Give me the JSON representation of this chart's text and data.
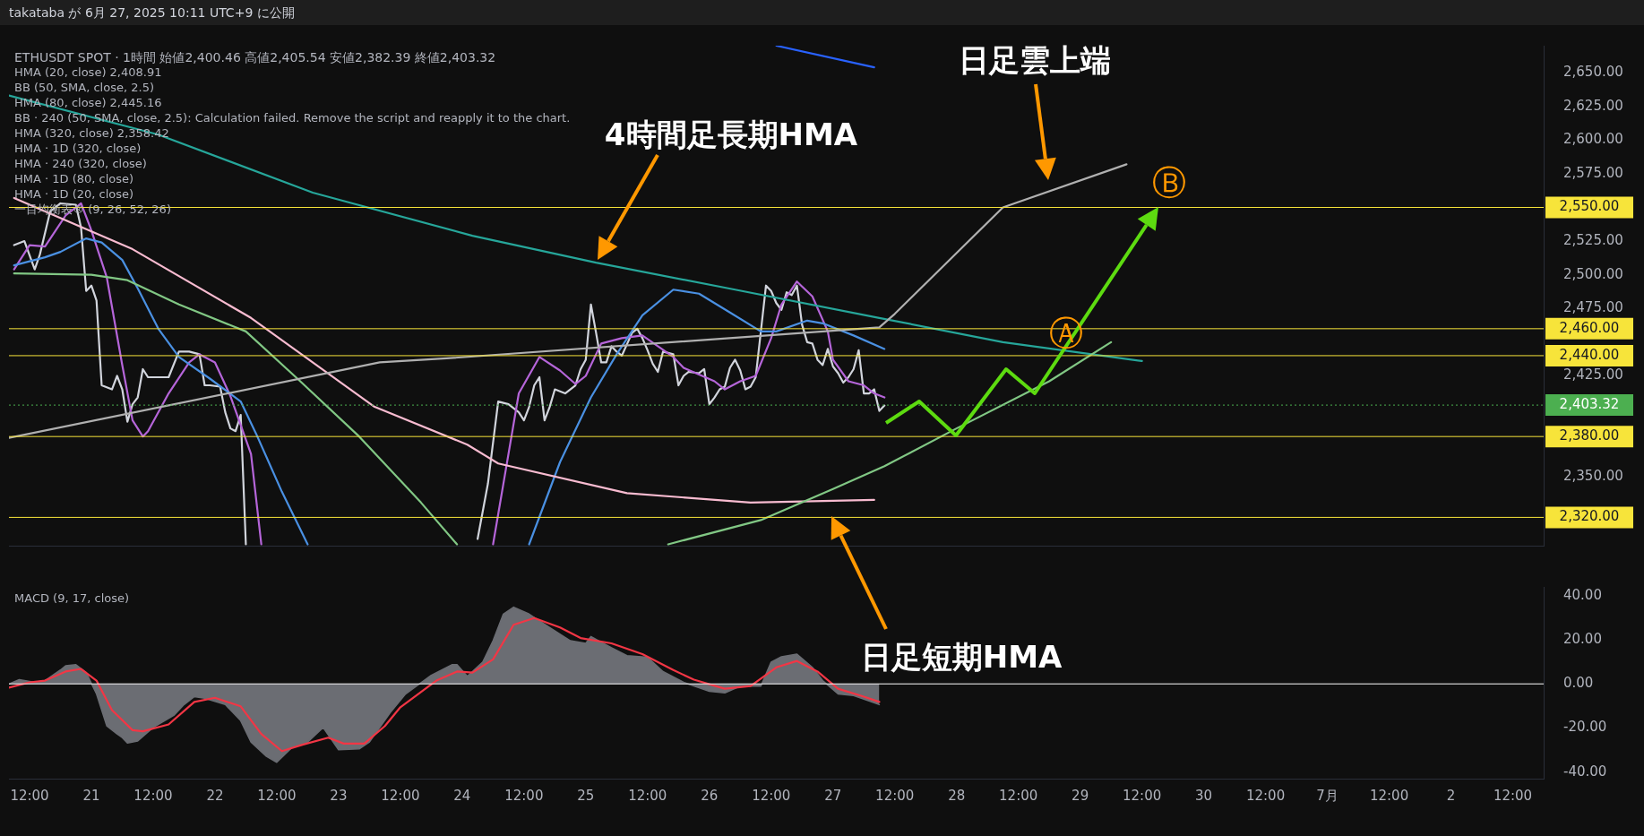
{
  "chart_data": [
    {
      "type": "line",
      "title": "takataba が 6月 27, 2025 10:11 UTC+9 に公開",
      "subtitle": "ETHUSDT SPOT · 1時間 始値2,400.46 高値2,405.54 安値2,382.39 終値2,403.32",
      "xlim": [
        "2025-06-20T08:00",
        "2025-07-02T18:00"
      ],
      "ylim": [
        2299,
        2670
      ],
      "tick_labels": "y",
      "yticks": [
        {
          "value": 2350,
          "label": "2,350.00"
        },
        {
          "value": 2425,
          "label": "2,425.00"
        },
        {
          "value": 2475,
          "label": "2,475.00"
        },
        {
          "value": 2500,
          "label": "2,500.00"
        },
        {
          "value": 2525,
          "label": "2,525.00"
        },
        {
          "value": 2575,
          "label": "2,575.00"
        },
        {
          "value": 2600,
          "label": "2,600.00"
        },
        {
          "value": 2625,
          "label": "2,625.00"
        },
        {
          "value": 2650,
          "label": "2,650.00"
        }
      ],
      "series": [
        {
          "color": "#d1d4dc",
          "x": [
            "2025-06-20T09:00",
            "2025-06-20T11:00",
            "2025-06-20T13:00",
            "2025-06-20T14:00",
            "2025-06-20T16:00",
            "2025-06-20T18:00",
            "2025-06-20T21:00",
            "2025-06-20T22:00",
            "2025-06-20T23:00",
            "2025-06-21T00:00",
            "2025-06-21T01:00",
            "2025-06-21T02:00",
            "2025-06-21T04:00",
            "2025-06-21T05:00",
            "2025-06-21T06:00",
            "2025-06-21T07:00",
            "2025-06-21T08:00",
            "2025-06-21T09:00",
            "2025-06-21T10:00",
            "2025-06-21T11:00",
            "2025-06-21T13:00",
            "2025-06-21T15:00",
            "2025-06-21T17:00",
            "2025-06-21T19:00",
            "2025-06-21T21:00",
            "2025-06-21T22:00",
            "2025-06-21T23:00",
            "2025-06-22T01:00",
            "2025-06-22T02:00",
            "2025-06-22T03:00",
            "2025-06-22T04:00",
            "2025-06-22T05:00",
            "2025-06-22T06:00",
            "2025-06-23T04:00",
            "2025-06-24T03:00",
            "2025-06-24T05:00",
            "2025-06-24T07:00",
            "2025-06-24T09:00",
            "2025-06-24T11:00",
            "2025-06-24T12:00",
            "2025-06-24T13:00",
            "2025-06-24T14:00",
            "2025-06-24T15:00",
            "2025-06-24T16:00",
            "2025-06-24T17:00",
            "2025-06-24T18:00",
            "2025-06-24T20:00",
            "2025-06-24T22:00",
            "2025-06-24T23:00",
            "2025-06-25T00:00",
            "2025-06-25T01:00",
            "2025-06-25T02:00",
            "2025-06-25T03:00",
            "2025-06-25T04:00",
            "2025-06-25T05:00",
            "2025-06-25T06:00",
            "2025-06-25T07:00",
            "2025-06-25T09:00",
            "2025-06-25T10:00",
            "2025-06-25T11:00",
            "2025-06-25T12:00",
            "2025-06-25T13:00",
            "2025-06-25T14:00",
            "2025-06-25T15:00",
            "2025-06-25T17:00",
            "2025-06-25T18:00",
            "2025-06-25T19:00",
            "2025-06-25T20:00",
            "2025-06-25T22:00",
            "2025-06-25T23:00",
            "2025-06-26T00:00",
            "2025-06-26T01:00",
            "2025-06-26T02:00",
            "2025-06-26T03:00",
            "2025-06-26T04:00",
            "2025-06-26T05:00",
            "2025-06-26T06:00",
            "2025-06-26T07:00",
            "2025-06-26T08:00",
            "2025-06-26T09:00",
            "2025-06-26T10:00",
            "2025-06-26T11:00",
            "2025-06-26T12:00",
            "2025-06-26T13:00",
            "2025-06-26T14:00",
            "2025-06-26T15:00",
            "2025-06-26T16:00",
            "2025-06-26T17:00",
            "2025-06-26T18:00",
            "2025-06-26T19:00",
            "2025-06-26T20:00",
            "2025-06-26T21:00",
            "2025-06-26T22:00",
            "2025-06-26T23:00",
            "2025-06-27T00:00",
            "2025-06-27T01:00",
            "2025-06-27T02:00",
            "2025-06-27T03:00",
            "2025-06-27T04:00",
            "2025-06-27T05:00",
            "2025-06-27T06:00",
            "2025-06-27T07:00",
            "2025-06-27T08:00",
            "2025-06-27T09:00",
            "2025-06-27T10:00"
          ],
          "values": [
            2522,
            2525,
            2504,
            2515,
            2547,
            2553,
            2552,
            2535,
            2488,
            2492,
            2481,
            2418,
            2415,
            2425,
            2415,
            2391,
            2404,
            2409,
            2430,
            2424,
            2424,
            2424,
            2443,
            2443,
            2441,
            2418,
            2418,
            2417,
            2398,
            2386,
            2384,
            2396,
            2300,
            null,
            2304,
            2345,
            2406,
            2404,
            2398,
            2392,
            2402,
            2418,
            2424,
            2392,
            2402,
            2415,
            2412,
            2418,
            2430,
            2437,
            2478,
            2457,
            2435,
            2435,
            2447,
            2443,
            2440,
            2457,
            2460,
            2453,
            2444,
            2434,
            2428,
            2443,
            2441,
            2418,
            2425,
            2428,
            2427,
            2430,
            2404,
            2409,
            2415,
            2417,
            2431,
            2437,
            2429,
            2415,
            2417,
            2424,
            2458,
            2492,
            2488,
            2479,
            2474,
            2487,
            2485,
            2492,
            2463,
            2450,
            2449,
            2437,
            2433,
            2445,
            2432,
            2427,
            2420,
            2424,
            2430,
            2444,
            2412,
            2412,
            2415,
            2399,
            2403
          ]
        },
        {
          "color": "#b565d9",
          "x": [
            "2025-06-20T09:00",
            "2025-06-20T12:00",
            "2025-06-20T15:00",
            "2025-06-20T19:00",
            "2025-06-20T22:00",
            "2025-06-21T00:00",
            "2025-06-21T03:00",
            "2025-06-21T06:00",
            "2025-06-21T08:00",
            "2025-06-21T10:00",
            "2025-06-21T11:00",
            "2025-06-21T15:00",
            "2025-06-21T19:00",
            "2025-06-21T21:00",
            "2025-06-22T00:00",
            "2025-06-22T03:00",
            "2025-06-22T07:00",
            "2025-06-22T09:00",
            "2025-06-23T08:00",
            "2025-06-24T06:00",
            "2025-06-24T11:00",
            "2025-06-24T15:00",
            "2025-06-24T19:00",
            "2025-06-24T22:00",
            "2025-06-25T00:00",
            "2025-06-25T03:00",
            "2025-06-25T07:00",
            "2025-06-25T11:00",
            "2025-06-25T14:00",
            "2025-06-25T17:00",
            "2025-06-25T19:00",
            "2025-06-25T22:00",
            "2025-06-26T01:00",
            "2025-06-26T03:00",
            "2025-06-26T06:00",
            "2025-06-26T09:00",
            "2025-06-26T12:00",
            "2025-06-26T14:00",
            "2025-06-26T17:00",
            "2025-06-26T20:00",
            "2025-06-26T23:00",
            "2025-06-27T00:00",
            "2025-06-27T03:00",
            "2025-06-27T06:00",
            "2025-06-27T08:00",
            "2025-06-27T10:00"
          ],
          "values": [
            2504,
            2522,
            2521,
            2544,
            2553,
            2533,
            2498,
            2433,
            2392,
            2380,
            2384,
            2412,
            2435,
            2441,
            2435,
            2410,
            2367,
            2300,
            null,
            2300,
            2412,
            2439,
            2429,
            2419,
            2425,
            2449,
            2453,
            2455,
            2447,
            2439,
            2431,
            2426,
            2421,
            2415,
            2421,
            2425,
            2453,
            2478,
            2495,
            2484,
            2458,
            2437,
            2421,
            2418,
            2412,
            2409
          ]
        },
        {
          "color": "#4a90e2",
          "x": [
            "2025-06-20T09:00",
            "2025-06-20T15:00",
            "2025-06-20T18:00",
            "2025-06-20T23:00",
            "2025-06-21T02:00",
            "2025-06-21T06:00",
            "2025-06-21T09:00",
            "2025-06-21T13:00",
            "2025-06-21T17:00",
            "2025-06-21T23:00",
            "2025-06-22T05:00",
            "2025-06-22T08:00",
            "2025-06-22T13:00",
            "2025-06-22T18:00",
            "2025-06-23T16:00",
            "2025-06-24T13:00",
            "2025-06-24T19:00",
            "2025-06-25T01:00",
            "2025-06-25T06:00",
            "2025-06-25T11:00",
            "2025-06-25T17:00",
            "2025-06-25T22:00",
            "2025-06-26T04:00",
            "2025-06-26T10:00",
            "2025-06-26T13:00",
            "2025-06-26T19:00",
            "2025-06-26T22:00",
            "2025-06-27T04:00",
            "2025-06-27T10:00"
          ],
          "values": [
            2507,
            2513,
            2517,
            2527,
            2524,
            2511,
            2490,
            2460,
            2439,
            2423,
            2406,
            2382,
            2339,
            2300,
            null,
            2300,
            2361,
            2409,
            2441,
            2470,
            2489,
            2486,
            2472,
            2458,
            2458,
            2466,
            2464,
            2455,
            2445
          ]
        },
        {
          "color": "#f8bbd0",
          "x": [
            "2025-06-20T09:00",
            "2025-06-21T08:00",
            "2025-06-22T07:00",
            "2025-06-23T07:00",
            "2025-06-24T01:00",
            "2025-06-24T07:00",
            "2025-06-25T08:00",
            "2025-06-26T08:00",
            "2025-06-27T08:00"
          ],
          "values": [
            2557,
            2519,
            2468,
            2402,
            2374,
            2360,
            2338,
            2331,
            2333
          ]
        },
        {
          "color": "#26a69a",
          "x": [
            "2025-06-20T08:00",
            "2025-06-21T13:00",
            "2025-06-22T19:00",
            "2025-06-24T02:00",
            "2025-06-25T02:00",
            "2025-06-26T05:00",
            "2025-06-27T09:00",
            "2025-06-28T09:00",
            "2025-06-29T12:00"
          ],
          "values": [
            2633,
            2604,
            2561,
            2529,
            2509,
            2489,
            2468,
            2450,
            2436
          ]
        },
        {
          "color": "#2962ff",
          "x": [
            "2025-06-26T13:00",
            "2025-06-27T08:00"
          ],
          "values": [
            2670,
            2654
          ]
        },
        {
          "color": "#81c784",
          "x": [
            "2025-06-20T09:00",
            "2025-06-21T00:00",
            "2025-06-21T07:00",
            "2025-06-21T17:00",
            "2025-06-22T06:00",
            "2025-06-22T16:00",
            "2025-06-23T04:00",
            "2025-06-23T16:00",
            "2025-06-23T23:00",
            "2025-06-24T19:00",
            "2025-06-25T16:00",
            "2025-06-26T10:00",
            "2025-06-27T00:00",
            "2025-06-27T10:00",
            "2025-06-28T00:00",
            "2025-06-28T18:00",
            "2025-06-29T06:00"
          ],
          "values": [
            2501,
            2500,
            2496,
            2478,
            2458,
            2423,
            2380,
            2331,
            2300,
            null,
            2300,
            2318,
            2341,
            2358,
            2386,
            2421,
            2450
          ]
        },
        {
          "color": "#b0b0b0",
          "x": [
            "2025-06-20T08:00",
            "2025-06-23T08:00",
            "2025-06-23T21:00",
            "2025-06-27T09:00",
            "2025-06-27T12:00",
            "2025-06-28T09:00",
            "2025-06-29T09:00"
          ],
          "values": [
            2379,
            2435,
            2438,
            2461,
            2471,
            2550,
            2582
          ]
        }
      ],
      "ref_lines": [
        {
          "axis": "y",
          "value": 2550,
          "label": "2,550.00",
          "color": "#f7e43a"
        },
        {
          "axis": "y",
          "value": 2460,
          "label": "2,460.00",
          "color": "#f7e43a"
        },
        {
          "axis": "y",
          "value": 2440,
          "label": "2,440.00",
          "color": "#f7e43a"
        },
        {
          "axis": "y",
          "value": 2403.32,
          "label": "2,403.32",
          "color": "#4caf50",
          "line_style": "dotted"
        },
        {
          "axis": "y",
          "value": 2380,
          "label": "2,380.00",
          "color": "#f7e43a"
        },
        {
          "axis": "y",
          "value": 2320,
          "label": "2,320.00",
          "color": "#f7e43a"
        }
      ],
      "annotations": [
        "4時間足長期HMA",
        "日足雲上端",
        "日足短期HMA",
        "Ⓐ",
        "Ⓑ",
        "HMA (20, close) 2,408.91",
        "BB (50, SMA, close, 2.5)",
        "HMA (80, close) 2,445.16",
        "BB · 240 (50, SMA, close, 2.5): Calculation failed. Remove the script and reapply it to the chart.",
        "HMA (320, close) 2,358.42",
        "HMA · 1D (320, close)",
        "HMA · 240 (320, close)",
        "HMA · 1D (80, close)",
        "HMA · 1D (20, close)",
        "一目均衡表® (9, 26, 52, 26)"
      ]
    },
    {
      "type": "line",
      "title": "MACD (9, 17, close)",
      "xlim": [
        "2025-06-20T08:00",
        "2025-07-02T18:00"
      ],
      "ylim": [
        -43,
        44
      ],
      "xticks": [
        {
          "value": "2025-06-20T12:00",
          "label": "12:00"
        },
        {
          "value": "2025-06-21T00:00",
          "label": "21"
        },
        {
          "value": "2025-06-21T12:00",
          "label": "12:00"
        },
        {
          "value": "2025-06-22T00:00",
          "label": "22"
        },
        {
          "value": "2025-06-22T12:00",
          "label": "12:00"
        },
        {
          "value": "2025-06-23T00:00",
          "label": "23"
        },
        {
          "value": "2025-06-23T12:00",
          "label": "12:00"
        },
        {
          "value": "2025-06-24T00:00",
          "label": "24"
        },
        {
          "value": "2025-06-24T12:00",
          "label": "12:00"
        },
        {
          "value": "2025-06-25T00:00",
          "label": "25"
        },
        {
          "value": "2025-06-25T12:00",
          "label": "12:00"
        },
        {
          "value": "2025-06-26T00:00",
          "label": "26"
        },
        {
          "value": "2025-06-26T12:00",
          "label": "12:00"
        },
        {
          "value": "2025-06-27T00:00",
          "label": "27"
        },
        {
          "value": "2025-06-27T12:00",
          "label": "12:00"
        },
        {
          "value": "2025-06-28T00:00",
          "label": "28"
        },
        {
          "value": "2025-06-28T12:00",
          "label": "12:00"
        },
        {
          "value": "2025-06-29T00:00",
          "label": "29"
        },
        {
          "value": "2025-06-29T12:00",
          "label": "12:00"
        },
        {
          "value": "2025-06-30T00:00",
          "label": "30"
        },
        {
          "value": "2025-06-30T12:00",
          "label": "12:00"
        },
        {
          "value": "2025-07-01T00:00",
          "label": "7月"
        },
        {
          "value": "2025-07-01T12:00",
          "label": "12:00"
        },
        {
          "value": "2025-07-02T00:00",
          "label": "2"
        },
        {
          "value": "2025-07-02T12:00",
          "label": "12:00"
        }
      ],
      "yticks": [
        {
          "value": -40,
          "label": "-40.00"
        },
        {
          "value": -20,
          "label": "-20.00"
        },
        {
          "value": 0,
          "label": "0.00"
        },
        {
          "value": 20,
          "label": "20.00"
        },
        {
          "value": 40,
          "label": "40.00"
        }
      ],
      "series": [
        {
          "type": "area",
          "color": "#6b6d73",
          "x": [
            "2025-06-20T08:00",
            "2025-06-20T10:00",
            "2025-06-20T13:00",
            "2025-06-20T15:00",
            "2025-06-20T18:00",
            "2025-06-20T19:00",
            "2025-06-20T21:00",
            "2025-06-20T23:00",
            "2025-06-21T01:00",
            "2025-06-21T03:00",
            "2025-06-21T05:00",
            "2025-06-21T06:00",
            "2025-06-21T07:00",
            "2025-06-21T09:00",
            "2025-06-21T12:00",
            "2025-06-21T16:00",
            "2025-06-21T18:00",
            "2025-06-21T20:00",
            "2025-06-21T22:00",
            "2025-06-22T02:00",
            "2025-06-22T05:00",
            "2025-06-22T07:00",
            "2025-06-22T10:00",
            "2025-06-22T12:00",
            "2025-06-22T15:00",
            "2025-06-22T18:00",
            "2025-06-22T21:00",
            "2025-06-23T00:00",
            "2025-06-23T04:00",
            "2025-06-23T06:00",
            "2025-06-23T10:00",
            "2025-06-23T13:00",
            "2025-06-23T18:00",
            "2025-06-23T22:00",
            "2025-06-23T23:00",
            "2025-06-24T01:00",
            "2025-06-24T04:00",
            "2025-06-24T06:00",
            "2025-06-24T08:00",
            "2025-06-24T10:00",
            "2025-06-24T13:00",
            "2025-06-24T17:00",
            "2025-06-24T21:00",
            "2025-06-25T00:00",
            "2025-06-25T01:00",
            "2025-06-25T05:00",
            "2025-06-25T08:00",
            "2025-06-25T12:00",
            "2025-06-25T15:00",
            "2025-06-25T19:00",
            "2025-06-26T00:00",
            "2025-06-26T03:00",
            "2025-06-26T06:00",
            "2025-06-26T10:00",
            "2025-06-26T12:00",
            "2025-06-26T14:00",
            "2025-06-26T17:00",
            "2025-06-26T20:00",
            "2025-06-26T22:00",
            "2025-06-27T01:00",
            "2025-06-27T04:00",
            "2025-06-27T07:00",
            "2025-06-27T09:00"
          ],
          "values": [
            0,
            1.9,
            0.7,
            1.5,
            6.3,
            8.2,
            8.7,
            5.1,
            -4.6,
            -19.1,
            -22.7,
            -24.4,
            -26.8,
            -25.9,
            -19.8,
            -14.3,
            -9.4,
            -5.8,
            -6.5,
            -9.4,
            -16.7,
            -26.4,
            -32.9,
            -35.6,
            -28.8,
            -26.4,
            -19.8,
            -29.9,
            -29.5,
            -26.4,
            -13.1,
            -4.6,
            3.9,
            8.7,
            8.7,
            3.4,
            9.9,
            19.6,
            31.7,
            34.8,
            31.7,
            25.6,
            19.6,
            18.4,
            21.5,
            16.4,
            12.8,
            12.1,
            5.6,
            0.7,
            -3.4,
            -4.1,
            -1,
            -1,
            9.9,
            12.3,
            13.5,
            7.5,
            1.5,
            -4.6,
            -5.3,
            -7.7,
            -9.4
          ]
        },
        {
          "color": "#f23645",
          "x": [
            "2025-06-20T08:00",
            "2025-06-20T12:00",
            "2025-06-20T15:00",
            "2025-06-20T19:00",
            "2025-06-20T22:00",
            "2025-06-21T01:00",
            "2025-06-21T04:00",
            "2025-06-21T08:00",
            "2025-06-21T10:00",
            "2025-06-21T15:00",
            "2025-06-21T20:00",
            "2025-06-22T00:00",
            "2025-06-22T05:00",
            "2025-06-22T09:00",
            "2025-06-22T13:00",
            "2025-06-22T17:00",
            "2025-06-22T22:00",
            "2025-06-23T01:00",
            "2025-06-23T05:00",
            "2025-06-23T09:00",
            "2025-06-23T12:00",
            "2025-06-23T19:00",
            "2025-06-23T23:00",
            "2025-06-24T02:00",
            "2025-06-24T06:00",
            "2025-06-24T10:00",
            "2025-06-24T14:00",
            "2025-06-24T19:00",
            "2025-06-24T23:00",
            "2025-06-25T05:00",
            "2025-06-25T11:00",
            "2025-06-25T17:00",
            "2025-06-25T21:00",
            "2025-06-26T03:00",
            "2025-06-26T08:00",
            "2025-06-26T13:00",
            "2025-06-26T17:00",
            "2025-06-26T21:00",
            "2025-06-27T01:00",
            "2025-06-27T06:00",
            "2025-06-27T09:00"
          ],
          "values": [
            -1.7,
            0.7,
            1.5,
            5.6,
            6.8,
            1.5,
            -11.9,
            -21,
            -21.5,
            -18.4,
            -8.2,
            -6.3,
            -10.2,
            -22.7,
            -30.5,
            -27.6,
            -24.4,
            -27.1,
            -27.1,
            -19.1,
            -10.6,
            1.5,
            5.6,
            5.1,
            11.1,
            26.8,
            29.9,
            25.6,
            20.8,
            18.4,
            13.5,
            6.3,
            1.9,
            -2.2,
            -1,
            7.5,
            10.4,
            5.6,
            -2.2,
            -5.8,
            -8.2
          ]
        }
      ],
      "ref_lines": [
        {
          "axis": "y",
          "value": 0,
          "color": "#ffffff"
        }
      ]
    }
  ]
}
